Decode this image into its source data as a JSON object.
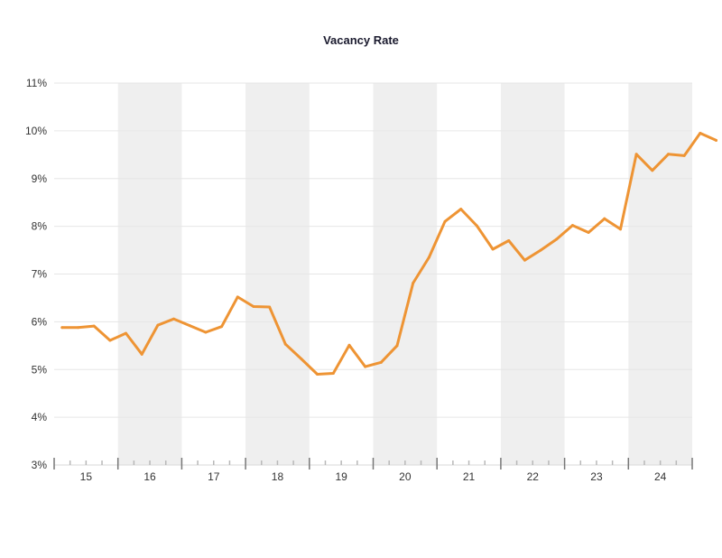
{
  "chart_data": {
    "type": "line",
    "title": "Vacancy Rate",
    "xlabel": "",
    "ylabel": "",
    "ylim": [
      3,
      11
    ],
    "y_ticks": [
      "3%",
      "4%",
      "5%",
      "6%",
      "7%",
      "8%",
      "9%",
      "10%",
      "11%"
    ],
    "x_tick_labels": [
      "15",
      "16",
      "17",
      "18",
      "19",
      "20",
      "21",
      "22",
      "23",
      "24"
    ],
    "grid": "horizontal",
    "legend": "none",
    "shaded_years": [
      "16",
      "18",
      "20",
      "22",
      "24"
    ],
    "colors": {
      "line": "#ee9434",
      "band": "#efefef",
      "grid": "#e6e6e6",
      "axis": "#888888"
    },
    "series": [
      {
        "values": [
          5.88,
          5.88,
          5.91,
          5.61,
          5.76,
          5.32,
          5.93,
          6.06,
          5.92,
          5.78,
          5.9,
          6.52,
          6.32,
          6.31,
          5.53,
          5.22,
          4.9,
          4.92,
          5.51,
          5.06,
          5.15,
          5.5,
          6.81,
          7.35,
          8.1,
          8.36,
          8.01,
          7.52,
          7.7,
          7.29,
          7.5,
          7.73,
          8.02,
          7.87,
          8.16,
          7.94,
          9.51,
          9.17,
          9.51,
          9.48,
          9.95,
          9.8
        ]
      }
    ]
  }
}
